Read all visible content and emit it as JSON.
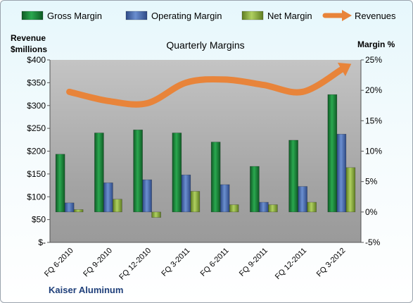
{
  "chart_data": {
    "type": "bar",
    "title": "Quarterly Margins",
    "left_axis_title_line1": "Revenue",
    "left_axis_title_line2": "$millions",
    "right_axis_title": "Margin %",
    "footer": "Kaiser Aluminum",
    "categories": [
      "FQ 6-2010",
      "FQ 9-2010",
      "FQ 12-2010",
      "FQ 3-2011",
      "FQ 6-2011",
      "FQ 9-2011",
      "FQ 12-2011",
      "FQ 3-2012"
    ],
    "series": [
      {
        "name": "Gross Margin",
        "type": "bar",
        "axis": "right",
        "color": "#1e8a3c",
        "values": [
          9.5,
          13,
          13.5,
          13,
          11.5,
          7.5,
          11.8,
          19.3
        ]
      },
      {
        "name": "Operating Margin",
        "type": "bar",
        "axis": "right",
        "color": "#4a6fb5",
        "values": [
          1.5,
          4.8,
          5.3,
          6.1,
          4.5,
          1.6,
          4.2,
          12.8
        ]
      },
      {
        "name": "Net Margin",
        "type": "bar",
        "axis": "right",
        "color": "#8fb23c",
        "values": [
          0.4,
          2.1,
          -0.9,
          3.4,
          1.2,
          1.2,
          1.6,
          7.3
        ]
      },
      {
        "name": "Revenues",
        "type": "line",
        "axis": "left",
        "color": "#e8843a",
        "values": [
          330,
          310,
          305,
          350,
          357,
          345,
          330,
          379
        ]
      }
    ],
    "left_axis": {
      "min": 0,
      "max": 400,
      "step": 50,
      "tick_labels": [
        "$-",
        "$50",
        "$100",
        "$150",
        "$200",
        "$250",
        "$300",
        "$350",
        "$400"
      ]
    },
    "right_axis": {
      "min": -5,
      "max": 25,
      "step": 5,
      "tick_labels": [
        "-5%",
        "0%",
        "5%",
        "10%",
        "15%",
        "20%",
        "25%"
      ]
    },
    "legend_position": "top",
    "grid": false,
    "plot_background": "#a8a8a8"
  }
}
